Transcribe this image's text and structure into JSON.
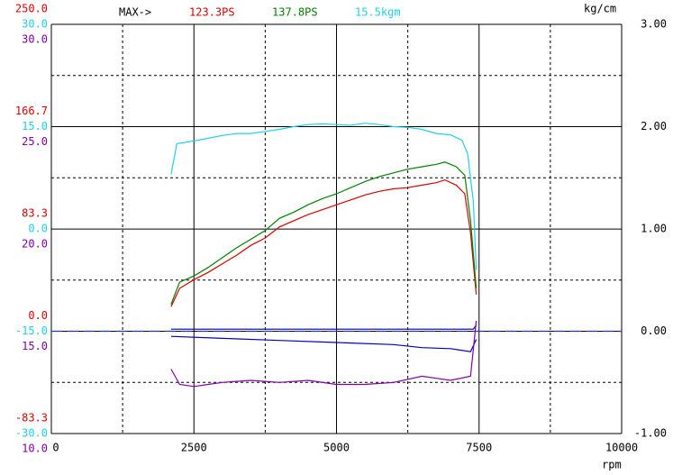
{
  "chart_data": {
    "type": "line",
    "header_label": "MAX->",
    "annotations": [
      {
        "text": "123.3PS",
        "color": "#d80000"
      },
      {
        "text": "137.8PS",
        "color": "#008000"
      },
      {
        "text": "15.5kgm",
        "color": "#20d0e8"
      }
    ],
    "y2_title": "kg/cm",
    "x_title": "rpm",
    "xlim": [
      0,
      10000
    ],
    "xticks": [
      0,
      2500,
      5000,
      7500,
      10000
    ],
    "ylim": [
      -83.3,
      250
    ],
    "yticks": [
      {
        "value": 250,
        "label": "250.0"
      },
      166.7,
      83.3,
      {
        "value": 0,
        "label": "0.0"
      },
      -83.3
    ],
    "y3lim": [
      -30,
      30
    ],
    "y3ticks": [
      {
        "value": 30,
        "label": "30.0"
      },
      {
        "value": 15,
        "label": "15.0"
      },
      {
        "value": 0,
        "label": "0.0"
      },
      {
        "value": -15,
        "label": "-15.0"
      },
      {
        "value": -30,
        "label": "-30.0"
      }
    ],
    "y4lim": [
      10,
      30
    ],
    "y4ticks": [
      {
        "value": 30,
        "label": "30.0"
      },
      {
        "value": 25,
        "label": "25.0"
      },
      {
        "value": 20,
        "label": "20.0"
      },
      {
        "value": 15,
        "label": "15.0"
      },
      {
        "value": 10,
        "label": "10.0"
      }
    ],
    "y2lim": [
      -1,
      3
    ],
    "y2ticks": [
      {
        "value": 3,
        "label": "3.00"
      },
      {
        "value": 2,
        "label": "2.00"
      },
      {
        "value": 1,
        "label": "1.00"
      },
      {
        "value": 0,
        "label": "0.00"
      },
      {
        "value": -1,
        "label": "-1.00"
      }
    ],
    "grid": true,
    "reference_line": {
      "axis": "y2",
      "value": 0,
      "color": "#2030d0"
    },
    "series": [
      {
        "color": "#d80000",
        "axis": "y",
        "x": [
          2100,
          2250,
          2500,
          2750,
          3000,
          3250,
          3500,
          3750,
          4000,
          4250,
          4500,
          4750,
          5000,
          5250,
          5500,
          5750,
          6000,
          6250,
          6500,
          6750,
          6900,
          7100,
          7250,
          7350,
          7450
        ],
        "values": [
          20,
          35,
          42,
          48,
          55,
          62,
          70,
          76,
          85,
          90,
          95,
          99,
          103,
          107,
          111,
          114,
          116,
          117,
          119,
          121,
          123.3,
          119,
          112,
          80,
          30
        ]
      },
      {
        "color": "#008000",
        "axis": "y",
        "x": [
          2100,
          2250,
          2500,
          2750,
          3000,
          3250,
          3500,
          3750,
          4000,
          4250,
          4500,
          4750,
          5000,
          5250,
          5500,
          5750,
          6000,
          6250,
          6500,
          6750,
          6900,
          7100,
          7250,
          7350,
          7450
        ],
        "values": [
          22,
          40,
          45,
          52,
          60,
          68,
          75,
          82,
          92,
          97,
          103,
          108,
          112,
          117,
          122,
          126,
          129,
          132,
          134,
          136,
          137.8,
          134,
          127,
          90,
          35
        ]
      },
      {
        "color": "#20d0e8",
        "axis": "y3",
        "x": [
          2100,
          2200,
          2500,
          2750,
          3000,
          3250,
          3500,
          3750,
          4000,
          4250,
          4500,
          4750,
          5000,
          5250,
          5500,
          5750,
          6000,
          6250,
          6500,
          6750,
          7000,
          7200,
          7300,
          7400,
          7450
        ],
        "values": [
          8.0,
          12.5,
          12.9,
          13.3,
          13.7,
          14.0,
          14.0,
          14.3,
          14.6,
          15.0,
          15.3,
          15.4,
          15.3,
          15.2,
          15.5,
          15.3,
          15.0,
          14.9,
          14.6,
          14.0,
          13.8,
          13.0,
          11.0,
          4.0,
          -6.0
        ]
      },
      {
        "color": "#000090",
        "axis": "y2",
        "x": [
          2100,
          4000,
          6000,
          7400,
          7450
        ],
        "values": [
          0.02,
          0.02,
          0.02,
          0.02,
          0.06
        ]
      },
      {
        "color": "#0000c0",
        "axis": "y2",
        "x": [
          2100,
          3000,
          4000,
          5000,
          6000,
          6500,
          7000,
          7350,
          7450
        ],
        "values": [
          -0.05,
          -0.07,
          -0.09,
          -0.11,
          -0.13,
          -0.16,
          -0.17,
          -0.2,
          -0.08
        ]
      },
      {
        "color": "#8000a8",
        "axis": "y4",
        "x": [
          2100,
          2250,
          2500,
          2750,
          3000,
          3500,
          4000,
          4500,
          5000,
          5500,
          6000,
          6500,
          6750,
          7000,
          7350,
          7450
        ],
        "values": [
          13.15,
          12.4,
          12.3,
          12.4,
          12.5,
          12.6,
          12.5,
          12.6,
          12.4,
          12.4,
          12.5,
          12.8,
          12.7,
          12.6,
          12.8,
          15.5
        ]
      }
    ]
  }
}
